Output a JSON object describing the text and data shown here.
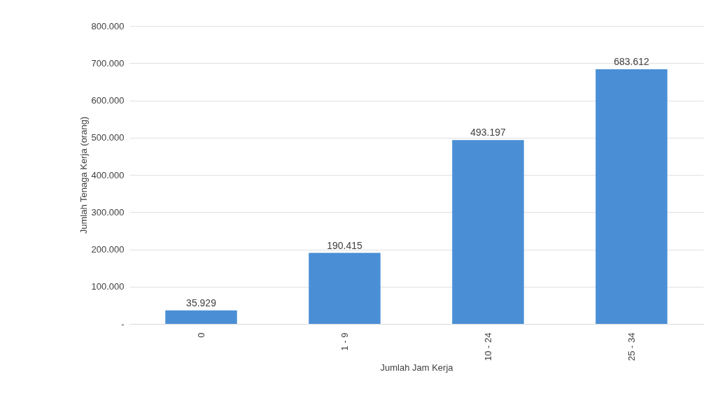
{
  "chart_data": {
    "type": "bar",
    "xlabel": "Jumlah Jam Kerja",
    "ylabel": "Jumlah Tenaga Kerja (orang)",
    "categories": [
      "0",
      "1 - 9",
      "10 - 24",
      "25 - 34"
    ],
    "values": [
      35929,
      190415,
      493197,
      683612
    ],
    "value_labels": [
      "35.929",
      "190.415",
      "493.197",
      "683.612"
    ],
    "color": "#4a8fd6",
    "ylim": [
      0,
      800000
    ],
    "yticks": [
      {
        "value": 0,
        "label": "-"
      },
      {
        "value": 100000,
        "label": "100.000"
      },
      {
        "value": 200000,
        "label": "200.000"
      },
      {
        "value": 300000,
        "label": "300.000"
      },
      {
        "value": 400000,
        "label": "400.000"
      },
      {
        "value": 500000,
        "label": "500.000"
      },
      {
        "value": 600000,
        "label": "600.000"
      },
      {
        "value": 700000,
        "label": "700.000"
      },
      {
        "value": 800000,
        "label": "800.000"
      }
    ],
    "grid": "y"
  }
}
